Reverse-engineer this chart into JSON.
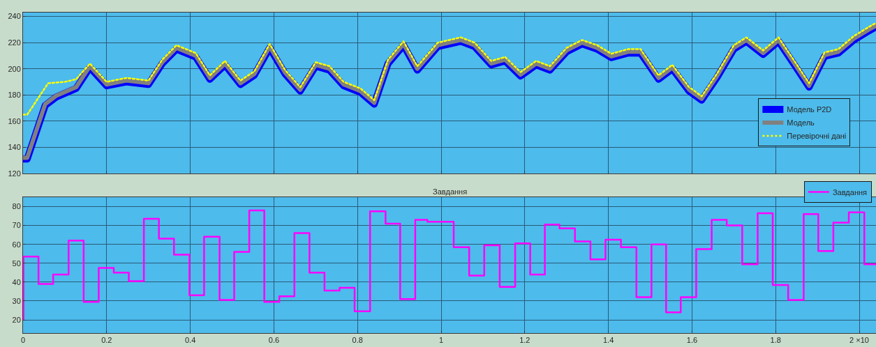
{
  "chart_data": [
    {
      "type": "line",
      "xlim": [
        0,
        2.04
      ],
      "ylim": [
        120,
        243
      ],
      "xticks": [
        0,
        0.2,
        0.4,
        0.6,
        0.8,
        1,
        1.2,
        1.4,
        1.6,
        1.8,
        2
      ],
      "yticks": [
        120,
        140,
        160,
        180,
        200,
        220,
        240
      ],
      "tick_labels": "y",
      "grid": true,
      "legend": "right",
      "marker": "none",
      "series": [
        {
          "name": "Модель P2D",
          "color": "#0000ff",
          "line_style": "solid",
          "x": [
            0,
            0.01,
            0.053,
            0.08,
            0.127,
            0.16,
            0.2,
            0.247,
            0.3,
            0.333,
            0.367,
            0.413,
            0.447,
            0.483,
            0.52,
            0.553,
            0.59,
            0.627,
            0.663,
            0.7,
            0.733,
            0.767,
            0.807,
            0.84,
            0.873,
            0.91,
            0.943,
            0.992,
            1.047,
            1.08,
            1.12,
            1.153,
            1.19,
            1.227,
            1.26,
            1.3,
            1.337,
            1.373,
            1.407,
            1.447,
            1.477,
            1.52,
            1.553,
            1.593,
            1.623,
            1.66,
            1.7,
            1.73,
            1.77,
            1.807,
            1.847,
            1.88,
            1.917,
            1.95,
            1.987,
            2.023,
            2.04
          ],
          "values": [
            131,
            131,
            172,
            178.5,
            185,
            201,
            187,
            190,
            188,
            204,
            215,
            209,
            192,
            203,
            188,
            195,
            216,
            196,
            183,
            202,
            199,
            187,
            182,
            173,
            204,
            218,
            199,
            217,
            221,
            217,
            203,
            206,
            194.5,
            203,
            199,
            213,
            219,
            215,
            208.5,
            212,
            212,
            192,
            200,
            183,
            176,
            193.5,
            215,
            221,
            211,
            221,
            202,
            186,
            209.5,
            212,
            222,
            229,
            232
          ]
        },
        {
          "name": "Модель",
          "color": "#808080",
          "line_style": "solid",
          "x": [
            0,
            0.01,
            0.053,
            0.08,
            0.127,
            0.16,
            0.2,
            0.247,
            0.3,
            0.333,
            0.367,
            0.413,
            0.447,
            0.483,
            0.52,
            0.553,
            0.59,
            0.627,
            0.663,
            0.7,
            0.733,
            0.767,
            0.807,
            0.84,
            0.873,
            0.91,
            0.943,
            0.992,
            1.047,
            1.08,
            1.12,
            1.153,
            1.19,
            1.227,
            1.26,
            1.3,
            1.337,
            1.373,
            1.407,
            1.447,
            1.477,
            1.52,
            1.553,
            1.593,
            1.623,
            1.66,
            1.7,
            1.73,
            1.77,
            1.807,
            1.847,
            1.88,
            1.917,
            1.95,
            1.987,
            2.023,
            2.04
          ],
          "values": [
            132,
            132,
            173,
            179.5,
            186,
            202,
            188,
            191,
            189,
            205,
            216,
            210,
            193,
            204,
            189,
            196,
            217,
            197,
            184,
            203,
            200,
            188,
            183,
            174,
            205,
            219,
            200,
            218,
            222,
            218,
            204,
            207,
            195.5,
            204,
            200,
            214,
            220,
            216,
            209.5,
            213,
            213,
            193,
            201,
            184,
            177,
            194.5,
            216,
            222,
            212,
            222,
            203,
            187,
            210.5,
            213,
            223,
            230,
            233
          ]
        },
        {
          "name": "Перевірочні дані",
          "color": "#ffff00",
          "line_style": "dotted",
          "x": [
            0,
            0.01,
            0.06,
            0.1,
            0.127,
            0.16,
            0.2,
            0.247,
            0.3,
            0.333,
            0.367,
            0.413,
            0.447,
            0.483,
            0.52,
            0.553,
            0.59,
            0.627,
            0.663,
            0.7,
            0.733,
            0.767,
            0.807,
            0.84,
            0.873,
            0.91,
            0.943,
            0.992,
            1.047,
            1.08,
            1.12,
            1.153,
            1.19,
            1.227,
            1.26,
            1.3,
            1.337,
            1.373,
            1.407,
            1.447,
            1.477,
            1.52,
            1.553,
            1.593,
            1.623,
            1.66,
            1.7,
            1.73,
            1.77,
            1.807,
            1.847,
            1.88,
            1.917,
            1.95,
            1.987,
            2.023,
            2.04
          ],
          "values": [
            165,
            165,
            189,
            190,
            192,
            204,
            190,
            193,
            191,
            207,
            218,
            212,
            195,
            206,
            191,
            198,
            219,
            199,
            186,
            205,
            202,
            190,
            185,
            176,
            207,
            221,
            202,
            220,
            224,
            220,
            206,
            209,
            197.5,
            206,
            202,
            216,
            222,
            218,
            211.5,
            215,
            215,
            195,
            203,
            186,
            179,
            196.5,
            218,
            224,
            214,
            224,
            205,
            189,
            212.5,
            215,
            225,
            232,
            235
          ]
        }
      ]
    },
    {
      "type": "step",
      "title": "Завдання",
      "xlim": [
        0,
        2.04
      ],
      "ylim": [
        13,
        85
      ],
      "xticks": [
        0,
        0.2,
        0.4,
        0.6,
        0.8,
        1,
        1.2,
        1.4,
        1.6,
        1.8,
        {
          "value": 2,
          "label": "2 ×10"
        }
      ],
      "yticks": [
        20,
        30,
        40,
        50,
        60,
        70,
        80
      ],
      "grid": true,
      "legend": "top right",
      "marker": "none",
      "series": [
        {
          "name": "Завдання",
          "color": "#ff00ff",
          "x": [
            0,
            0.001,
            0.037,
            0.072,
            0.109,
            0.145,
            0.181,
            0.217,
            0.253,
            0.289,
            0.325,
            0.361,
            0.398,
            0.433,
            0.47,
            0.505,
            0.541,
            0.577,
            0.613,
            0.649,
            0.685,
            0.721,
            0.757,
            0.793,
            0.83,
            0.867,
            0.902,
            0.938,
            0.967,
            1.03,
            1.067,
            1.103,
            1.14,
            1.177,
            1.213,
            1.248,
            1.283,
            1.32,
            1.357,
            1.393,
            1.43,
            1.467,
            1.503,
            1.538,
            1.573,
            1.61,
            1.647,
            1.683,
            1.72,
            1.757,
            1.793,
            1.83,
            1.867,
            1.902,
            1.938,
            1.975,
            2.012,
            2.04
          ],
          "values": [
            20,
            53.5,
            39,
            44,
            62,
            29.5,
            47.5,
            45,
            40.5,
            73.5,
            63,
            54.5,
            33,
            64,
            30.5,
            56,
            78,
            29.5,
            32.5,
            66,
            45,
            35.5,
            37,
            24.5,
            77.5,
            71,
            31,
            73,
            72,
            58.5,
            43.5,
            59.5,
            37.5,
            60.5,
            44,
            70.5,
            68.5,
            61.5,
            52,
            62.5,
            58.5,
            32,
            60,
            24,
            32,
            57.5,
            73,
            70,
            49.5,
            76.5,
            38.5,
            30.5,
            76,
            56.5,
            71.5,
            77,
            49.5,
            49.5
          ]
        }
      ]
    }
  ]
}
